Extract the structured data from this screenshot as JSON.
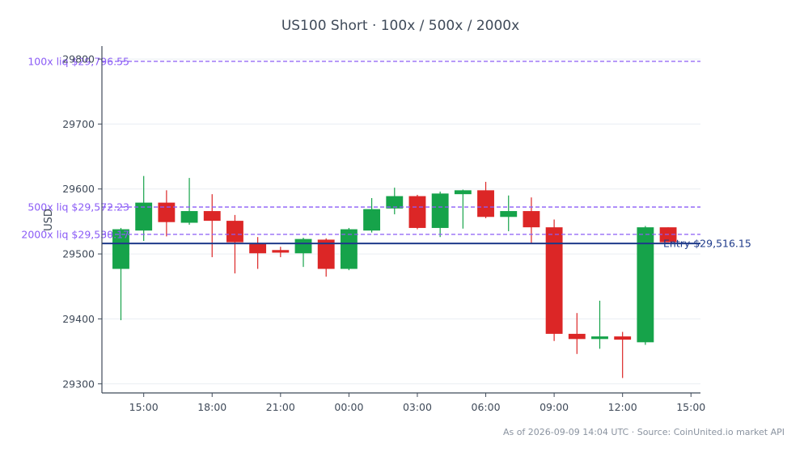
{
  "chart_data": {
    "type": "candlestick",
    "title": "US100 Short · 100x / 500x / 2000x",
    "xlabel": "",
    "ylabel": "USD",
    "ylim": [
      29286,
      29820
    ],
    "xlim": [
      "2026-09-08 13:10",
      "2026-09-09 15:25"
    ],
    "grid": "horizontal",
    "x_ticks": [
      "15:00",
      "18:00",
      "21:00",
      "00:00",
      "03:00",
      "06:00",
      "09:00",
      "12:00",
      "15:00"
    ],
    "x_tick_times": [
      "2026-09-08 15:00",
      "2026-09-08 18:00",
      "2026-09-08 21:00",
      "2026-09-09 00:00",
      "2026-09-09 03:00",
      "2026-09-09 06:00",
      "2026-09-09 09:00",
      "2026-09-09 12:00",
      "2026-09-09 15:00"
    ],
    "y_ticks": [
      "29300",
      "29400",
      "29500",
      "29600",
      "29700",
      "29800"
    ],
    "up_color": "#16a34a",
    "down_color": "#dc2626",
    "candles": [
      {
        "t": "2026-09-08 14:00",
        "o": 29477,
        "h": 29540,
        "l": 29398,
        "c": 29538
      },
      {
        "t": "2026-09-08 15:00",
        "o": 29536,
        "h": 29620,
        "l": 29520,
        "c": 29579
      },
      {
        "t": "2026-09-08 16:00",
        "o": 29579,
        "h": 29598,
        "l": 29527,
        "c": 29549
      },
      {
        "t": "2026-09-08 17:00",
        "o": 29548,
        "h": 29617,
        "l": 29545,
        "c": 29566
      },
      {
        "t": "2026-09-08 18:00",
        "o": 29566,
        "h": 29592,
        "l": 29495,
        "c": 29551
      },
      {
        "t": "2026-09-08 19:00",
        "o": 29551,
        "h": 29560,
        "l": 29470,
        "c": 29518
      },
      {
        "t": "2026-09-08 20:00",
        "o": 29516,
        "h": 29526,
        "l": 29477,
        "c": 29501
      },
      {
        "t": "2026-09-08 21:00",
        "o": 29506,
        "h": 29511,
        "l": 29495,
        "c": 29502
      },
      {
        "t": "2026-09-08 22:00",
        "o": 29501,
        "h": 29525,
        "l": 29480,
        "c": 29523
      },
      {
        "t": "2026-09-08 23:00",
        "o": 29522,
        "h": 29524,
        "l": 29465,
        "c": 29477
      },
      {
        "t": "2026-09-09 00:00",
        "o": 29477,
        "h": 29540,
        "l": 29475,
        "c": 29538
      },
      {
        "t": "2026-09-09 01:00",
        "o": 29536,
        "h": 29586,
        "l": 29533,
        "c": 29569
      },
      {
        "t": "2026-09-09 02:00",
        "o": 29570,
        "h": 29602,
        "l": 29561,
        "c": 29589
      },
      {
        "t": "2026-09-09 03:00",
        "o": 29589,
        "h": 29591,
        "l": 29538,
        "c": 29540
      },
      {
        "t": "2026-09-09 04:00",
        "o": 29540,
        "h": 29596,
        "l": 29526,
        "c": 29593
      },
      {
        "t": "2026-09-09 05:00",
        "o": 29592,
        "h": 29599,
        "l": 29539,
        "c": 29598
      },
      {
        "t": "2026-09-09 06:00",
        "o": 29598,
        "h": 29611,
        "l": 29555,
        "c": 29557
      },
      {
        "t": "2026-09-09 07:00",
        "o": 29557,
        "h": 29590,
        "l": 29535,
        "c": 29566
      },
      {
        "t": "2026-09-09 08:00",
        "o": 29566,
        "h": 29587,
        "l": 29517,
        "c": 29541
      },
      {
        "t": "2026-09-09 09:00",
        "o": 29541,
        "h": 29553,
        "l": 29366,
        "c": 29377
      },
      {
        "t": "2026-09-09 10:00",
        "o": 29377,
        "h": 29409,
        "l": 29346,
        "c": 29369
      },
      {
        "t": "2026-09-09 11:00",
        "o": 29369,
        "h": 29428,
        "l": 29354,
        "c": 29373
      },
      {
        "t": "2026-09-09 12:00",
        "o": 29373,
        "h": 29380,
        "l": 29309,
        "c": 29368
      },
      {
        "t": "2026-09-09 13:00",
        "o": 29364,
        "h": 29543,
        "l": 29360,
        "c": 29541
      },
      {
        "t": "2026-09-09 14:00",
        "o": 29541,
        "h": 29541,
        "l": 29518,
        "c": 29518
      }
    ],
    "reference_lines": [
      {
        "label": "100x liq $29,796.55",
        "value": 29796.55,
        "color": "#8b5cf6",
        "style": "dashed",
        "label_side": "left"
      },
      {
        "label": "500x liq $29,572.23",
        "value": 29572.23,
        "color": "#8b5cf6",
        "style": "dashed",
        "label_side": "left"
      },
      {
        "label": "2000x liq $29,530.17",
        "value": 29530.17,
        "color": "#8b5cf6",
        "style": "dashed",
        "label_side": "left"
      },
      {
        "label": "Entry $29,516.15",
        "value": 29516.15,
        "color": "#1e3a8a",
        "style": "solid",
        "label_side": "right"
      }
    ],
    "footnote": "As of 2026-09-09 14:04 UTC · Source: CoinUnited.io market API"
  }
}
